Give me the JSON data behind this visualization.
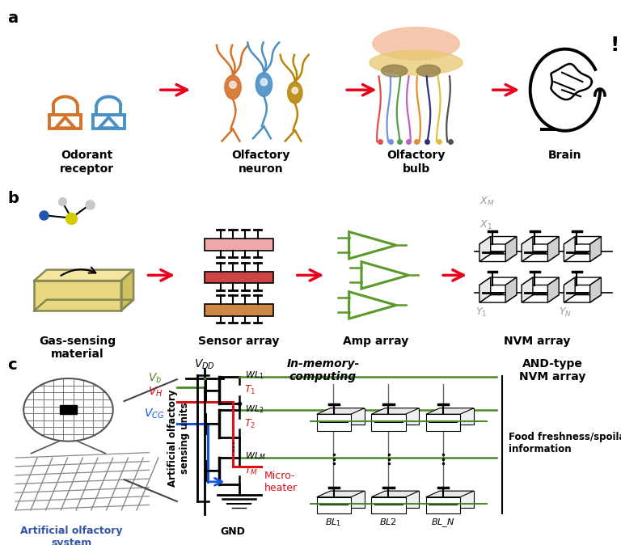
{
  "panel_a_label": "a",
  "panel_b_label": "b",
  "panel_c_label": "c",
  "panel_a_items": [
    "Odorant\nreceptor",
    "Olfactory\nneuron",
    "Olfactory\nbulb",
    "Brain"
  ],
  "panel_b_items": [
    "Gas-sensing\nmaterial",
    "Sensor array",
    "Amp array",
    "NVM array"
  ],
  "red_arrow": "#e8001c",
  "orange_color": "#d4722a",
  "blue_color": "#4a90c4",
  "gold_color": "#b8860b",
  "green_color": "#5a9a2a",
  "gray_color": "#999999",
  "label_fontsize": 10,
  "panel_label_fontsize": 14,
  "background_color": "#ffffff",
  "circuit_green": "#4a8a2a",
  "circuit_red": "#dd1111",
  "circuit_blue": "#1155dd",
  "tray_color": "#f5e6a0",
  "sensor_pink": "#f0a8a8",
  "sensor_red": "#cc4444",
  "sensor_brown": "#cc8844"
}
